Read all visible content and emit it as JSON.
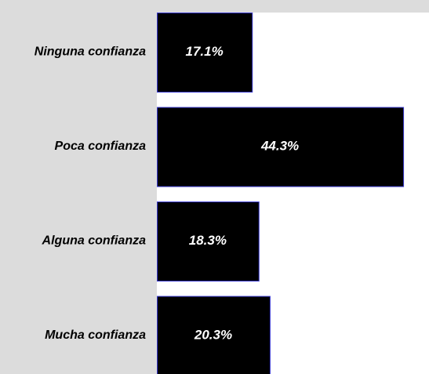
{
  "chart_data": {
    "type": "bar",
    "orientation": "horizontal",
    "categories": [
      "Ninguna confianza",
      "Poca confianza",
      "Alguna confianza",
      "Mucha confianza"
    ],
    "values": [
      17.1,
      44.3,
      18.3,
      20.3
    ],
    "value_labels": [
      "17.1%",
      "44.3%",
      "18.3%",
      "20.3%"
    ],
    "color": "#000000"
  }
}
